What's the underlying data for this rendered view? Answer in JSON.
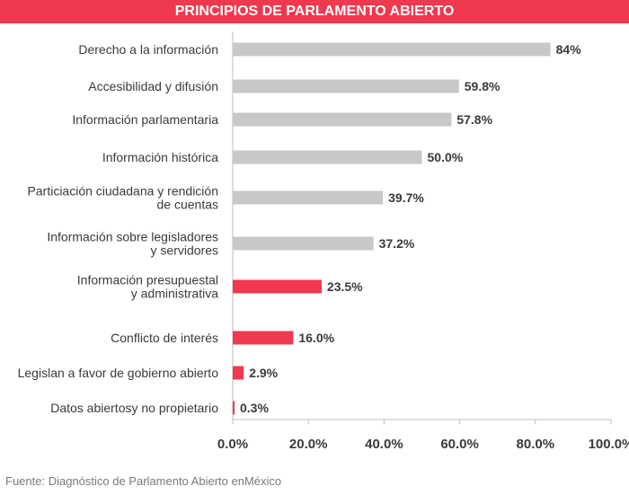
{
  "chart_data": {
    "type": "bar",
    "orientation": "horizontal",
    "title": "PRINCIPIOS DE PARLAMENTO ABIERTO",
    "categories": [
      [
        "Derecho a la información"
      ],
      [
        "Accesibilidad y difusión"
      ],
      [
        "Información parlamentaria"
      ],
      [
        "Información histórica"
      ],
      [
        "Particiación ciudadana y rendición",
        "de cuentas"
      ],
      [
        "Información sobre legisladores",
        "y servidores"
      ],
      [
        "Información presupuestal",
        "y administrativa"
      ],
      [
        "Conflicto de interés"
      ],
      [
        "Legislan a favor de gobierno abierto"
      ],
      [
        "Datos abiertosy no  propietario"
      ]
    ],
    "values": [
      84,
      59.8,
      57.8,
      50.0,
      39.7,
      37.2,
      23.5,
      16.0,
      2.9,
      0.3
    ],
    "value_labels": [
      "84%",
      "59.8%",
      "57.8%",
      "50.0%",
      "39.7%",
      "37.2%",
      "23.5%",
      "16.0%",
      "2.9%",
      "0.3%"
    ],
    "highlight": [
      false,
      false,
      false,
      false,
      false,
      false,
      true,
      true,
      true,
      true
    ],
    "colors": {
      "default": "#c8c8c8",
      "highlight": "#f0384f",
      "axis": "#bdbdbd",
      "text": "#3a3a3a"
    },
    "xlim": [
      0,
      100
    ],
    "x_ticks": [
      0,
      20,
      40,
      60,
      80,
      100
    ],
    "x_tick_labels": [
      "0.0%",
      "20.0%",
      "40.0%",
      "60.0%",
      "80.0%",
      "100.0%"
    ],
    "xlabel": "",
    "ylabel": ""
  },
  "source": "Fuente: Diagnóstico de Parlamento Abierto enMéxico"
}
